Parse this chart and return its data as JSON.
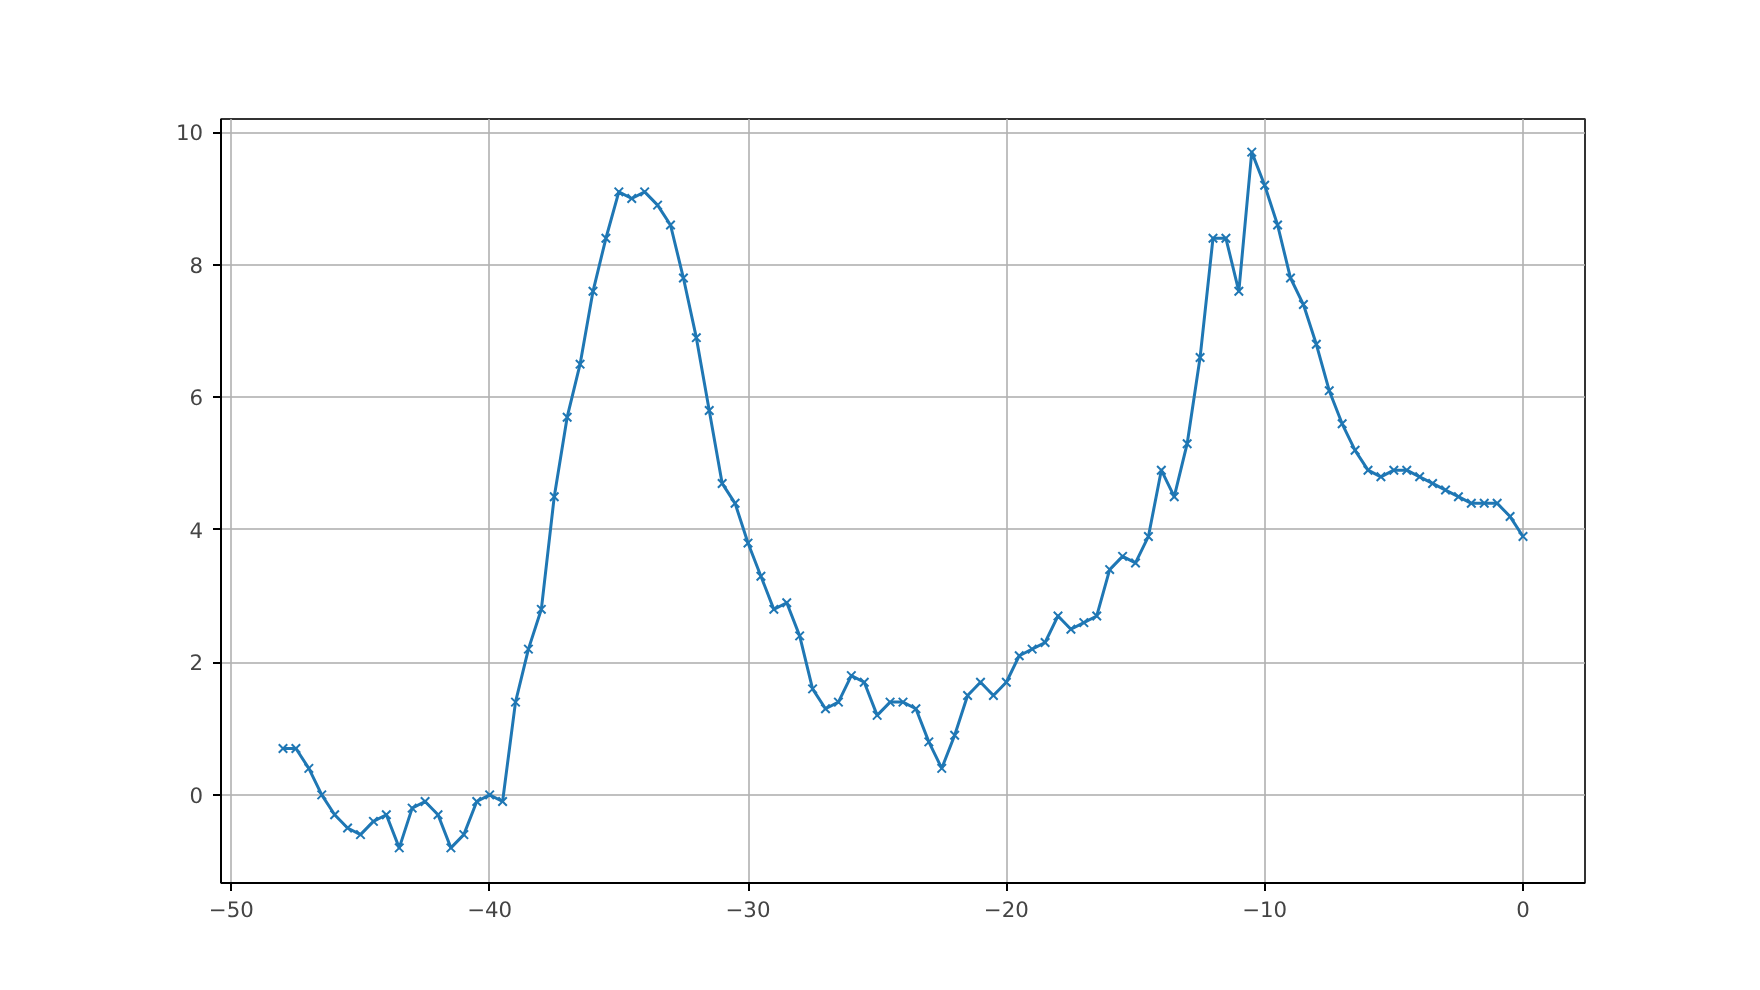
{
  "chart_data": {
    "type": "line",
    "x": [
      -48,
      -47.5,
      -47,
      -46.5,
      -46,
      -45.5,
      -45,
      -44.5,
      -44,
      -43.5,
      -43,
      -42.5,
      -42,
      -41.5,
      -41,
      -40.5,
      -40,
      -39.5,
      -39,
      -38.5,
      -38,
      -37.5,
      -37,
      -36.5,
      -36,
      -35.5,
      -35,
      -34.5,
      -34,
      -33.5,
      -33,
      -32.5,
      -32,
      -31.5,
      -31,
      -30.5,
      -30,
      -29.5,
      -29,
      -28.5,
      -28,
      -27.5,
      -27,
      -26.5,
      -26,
      -25.5,
      -25,
      -24.5,
      -24,
      -23.5,
      -23,
      -22.5,
      -22,
      -21.5,
      -21,
      -20.5,
      -20,
      -19.5,
      -19,
      -18.5,
      -18,
      -17.5,
      -17,
      -16.5,
      -16,
      -15.5,
      -15,
      -14.5,
      -14,
      -13.5,
      -13,
      -12.5,
      -12,
      -11.5,
      -11,
      -10.5,
      -10,
      -9.5,
      -9,
      -8.5,
      -8,
      -7.5,
      -7,
      -6.5,
      -6,
      -5.5,
      -5,
      -4.5,
      -4,
      -3.5,
      -3,
      -2.5,
      -2,
      -1.5,
      -1,
      -0.5,
      0
    ],
    "series": [
      {
        "color": "#1f77b4",
        "values": [
          0.7,
          0.7,
          0.4,
          0.0,
          -0.3,
          -0.5,
          -0.6,
          -0.4,
          -0.3,
          -0.8,
          -0.2,
          -0.1,
          -0.3,
          -0.8,
          -0.6,
          -0.1,
          0.0,
          -0.1,
          1.4,
          2.2,
          2.8,
          4.5,
          5.7,
          6.5,
          7.6,
          8.4,
          9.1,
          9.0,
          9.1,
          8.9,
          8.6,
          7.8,
          6.9,
          5.8,
          4.7,
          4.4,
          3.8,
          3.3,
          2.8,
          2.9,
          2.4,
          1.6,
          1.3,
          1.4,
          1.8,
          1.7,
          1.2,
          1.4,
          1.4,
          1.3,
          0.8,
          0.4,
          0.9,
          1.5,
          1.7,
          1.5,
          1.7,
          2.1,
          2.2,
          2.3,
          2.7,
          2.5,
          2.6,
          2.7,
          3.4,
          3.6,
          3.5,
          3.9,
          4.9,
          4.5,
          5.3,
          6.6,
          8.4,
          8.4,
          7.6,
          9.7,
          9.2,
          8.6,
          7.8,
          7.4,
          6.8,
          6.1,
          5.6,
          5.2,
          4.9,
          4.8,
          4.9,
          4.9,
          4.8,
          4.7,
          4.6,
          4.5,
          4.4,
          4.4,
          4.4,
          4.2,
          3.9
        ]
      }
    ],
    "xlim": [
      -50.4,
      2.4
    ],
    "ylim": [
      -1.33,
      10.2
    ],
    "xticks": [
      -50,
      -40,
      -30,
      -20,
      -10,
      0
    ],
    "yticks": [
      0,
      2,
      4,
      6,
      8,
      10
    ],
    "grid": true,
    "marker": "cross",
    "line_style": "solid"
  }
}
